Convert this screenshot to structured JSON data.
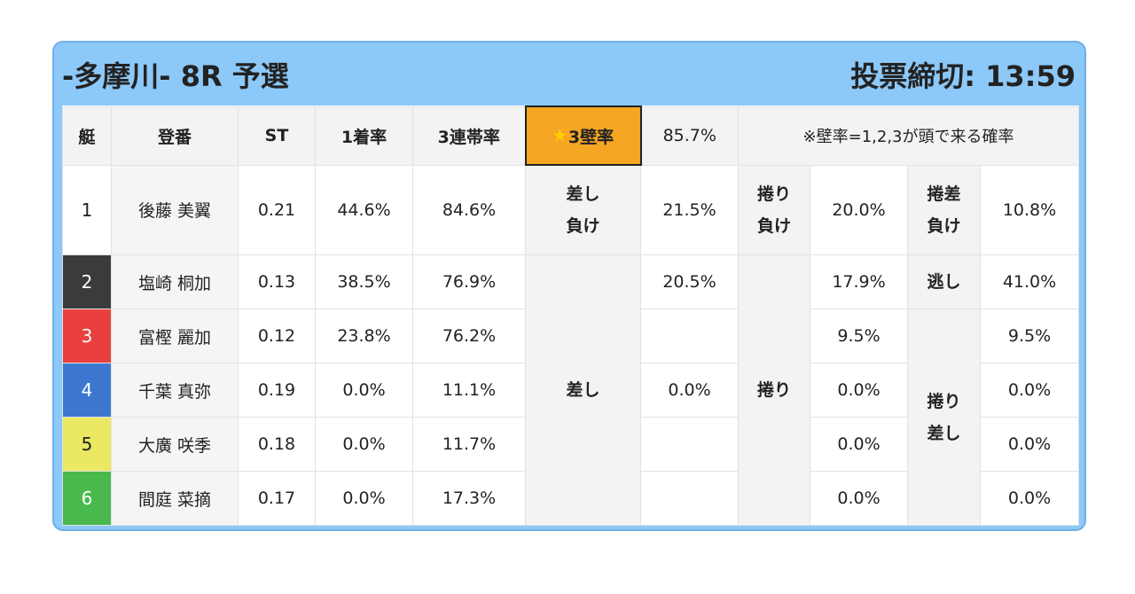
{
  "header": {
    "title": "-多摩川- 8R 予選",
    "deadline": "投票締切: 13:59"
  },
  "columns": {
    "boat": "艇",
    "name": "登番",
    "st": "ST",
    "win": "1着率",
    "top3": "3連帯率",
    "wall": "3壁率",
    "wall_star": "★",
    "wall_rate": "85.7%",
    "note": "※壁率=1,2,3が頭で来る確率"
  },
  "rows": [
    {
      "boat": "1",
      "name": "後藤 美翼",
      "st": "0.21",
      "win": "44.6%",
      "top3": "84.6%"
    },
    {
      "boat": "2",
      "name": "塩崎 桐加",
      "st": "0.13",
      "win": "38.5%",
      "top3": "76.9%"
    },
    {
      "boat": "3",
      "name": "富樫 麗加",
      "st": "0.12",
      "win": "23.8%",
      "top3": "76.2%"
    },
    {
      "boat": "4",
      "name": "千葉 真弥",
      "st": "0.19",
      "win": "0.0%",
      "top3": "11.1%"
    },
    {
      "boat": "5",
      "name": "大廣 咲季",
      "st": "0.18",
      "win": "0.0%",
      "top3": "11.7%"
    },
    {
      "boat": "6",
      "name": "間庭 菜摘",
      "st": "0.17",
      "win": "0.0%",
      "top3": "17.3%"
    }
  ],
  "groups": {
    "g1": {
      "row1_label_a": "差し",
      "row1_label_b": "負け",
      "row1_value": "21.5%",
      "label": "差し",
      "values": [
        "20.5%",
        "",
        "0.0%",
        "",
        ""
      ]
    },
    "g2": {
      "row1_label_a": "捲り",
      "row1_label_b": "負け",
      "row1_value": "20.0%",
      "label": "捲り",
      "values": [
        "17.9%",
        "9.5%",
        "0.0%",
        "0.0%",
        "0.0%"
      ]
    },
    "g3": {
      "row1_label_a": "捲差",
      "row1_label_b": "負け",
      "row1_value": "10.8%",
      "row2_label": "逃し",
      "label_a": "捲り",
      "label_b": "差し",
      "values": [
        "41.0%",
        "9.5%",
        "0.0%",
        "0.0%",
        "0.0%"
      ]
    }
  },
  "colors": {
    "boat1": "#ffffff",
    "boat2": "#3b3b3b",
    "boat3": "#e9403d",
    "boat4": "#3d77cf",
    "boat5": "#ebe864",
    "boat6": "#49b84d",
    "header_bg": "#8cc8f8",
    "wall_highlight": "#f5a623"
  }
}
